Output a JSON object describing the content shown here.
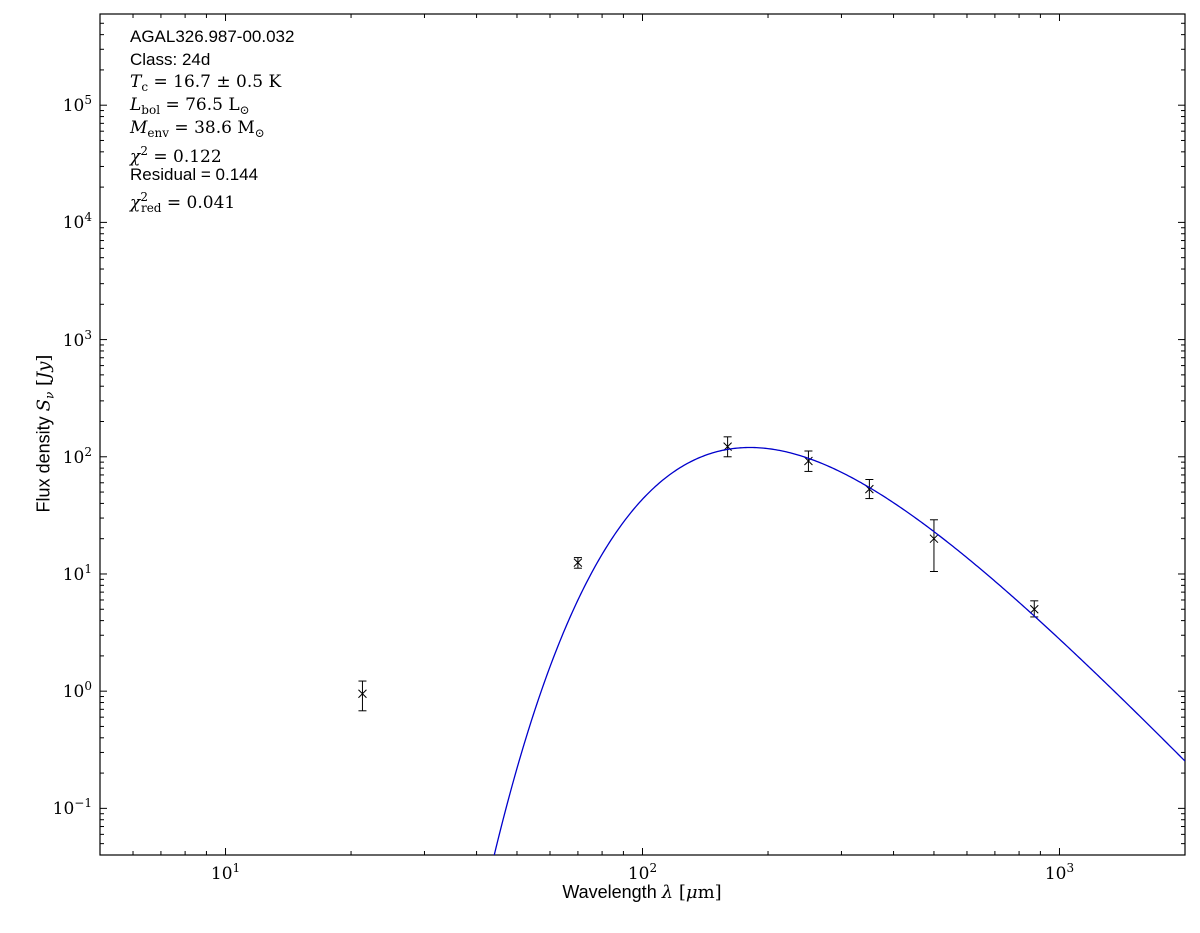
{
  "figure": {
    "background": "#ffffff",
    "frame_color": "#000000",
    "annotation_lines": [
      {
        "font": "sans",
        "parts": [
          {
            "t": "AGAL326.987-00.032"
          }
        ]
      },
      {
        "font": "sans",
        "parts": [
          {
            "t": "Class: 24d"
          }
        ]
      },
      {
        "font": "serif",
        "parts": [
          {
            "t": "T",
            "i": true
          },
          {
            "t": "c",
            "sub": true
          },
          {
            "t": " = 16.7 ± 0.5 K"
          }
        ]
      },
      {
        "font": "serif",
        "parts": [
          {
            "t": "L",
            "i": true
          },
          {
            "t": "bol",
            "sub": true
          },
          {
            "t": " = 76.5 L"
          },
          {
            "t": "⊙",
            "sub": true
          }
        ]
      },
      {
        "font": "serif",
        "parts": [
          {
            "t": "M",
            "i": true
          },
          {
            "t": "env",
            "sub": true
          },
          {
            "t": " = 38.6 M"
          },
          {
            "t": "⊙",
            "sub": true
          }
        ]
      },
      {
        "font": "serif",
        "parts": [
          {
            "t": "χ",
            "i": true
          },
          {
            "t": "2",
            "sup": true
          },
          {
            "t": " = 0.122"
          }
        ]
      },
      {
        "font": "sans",
        "parts": [
          {
            "t": "Residual = 0.144"
          }
        ]
      },
      {
        "font": "serif",
        "parts": [
          {
            "t": "χ",
            "i": true
          },
          {
            "t": "2",
            "sup": true
          },
          {
            "t": "red",
            "sub": true,
            "stack": true
          },
          {
            "t": " = 0.041"
          }
        ]
      }
    ],
    "xlabel_parts": [
      {
        "t": "Wavelength "
      },
      {
        "t": "λ",
        "i": true
      },
      {
        "t": " [",
        "rm": true
      },
      {
        "t": "μ",
        "i": true
      },
      {
        "t": "m]",
        "rm": true
      }
    ],
    "ylabel_parts": [
      {
        "t": "Flux density "
      },
      {
        "t": "S",
        "i": true
      },
      {
        "t": "ν",
        "i": true,
        "sub": true
      },
      {
        "t": " [",
        "rm": true
      },
      {
        "t": "Jy",
        "i": true
      },
      {
        "t": "]",
        "rm": true
      }
    ]
  },
  "chart_data": {
    "type": "scatter",
    "title": "",
    "xlabel": "Wavelength λ [μm]",
    "ylabel": "Flux density Sν [Jy]",
    "xscale": "log",
    "yscale": "log",
    "xlim": [
      5,
      2000
    ],
    "ylim": [
      0.04,
      600000
    ],
    "x_major_ticks": [
      10,
      100,
      1000
    ],
    "y_major_ticks": [
      0.1,
      1,
      10,
      100,
      1000,
      10000,
      100000
    ],
    "grid": false,
    "legend": "none",
    "annotations_text": [
      "AGAL326.987-00.032",
      "Class: 24d",
      "T_c = 16.7 ± 0.5 K",
      "L_bol = 76.5 L_⊙",
      "M_env = 38.6 M_⊙",
      "χ² = 0.122",
      "Residual = 0.144",
      "χ²_red = 0.041"
    ],
    "series": [
      {
        "name": "photometry",
        "type": "scatter",
        "marker": "x",
        "color": "#000000",
        "x": [
          21.3,
          70,
          160,
          250,
          350,
          500,
          870
        ],
        "y": [
          0.95,
          12.5,
          122,
          92,
          53,
          20,
          5.0
        ],
        "yerr_lo": [
          0.27,
          1.3,
          22,
          17,
          9,
          9.5,
          0.7
        ],
        "yerr_hi": [
          0.27,
          1.3,
          26,
          20,
          11,
          9,
          0.9
        ]
      },
      {
        "name": "greybody-fit",
        "type": "model-line",
        "color": "#0000cc",
        "model": {
          "kind": "modified-blackbody",
          "T_K": 16.7,
          "beta": 1.8,
          "peak_flux_jy": 120,
          "peak_lambda_um": 181
        },
        "lambda_range_um": [
          40,
          2000
        ]
      }
    ]
  }
}
